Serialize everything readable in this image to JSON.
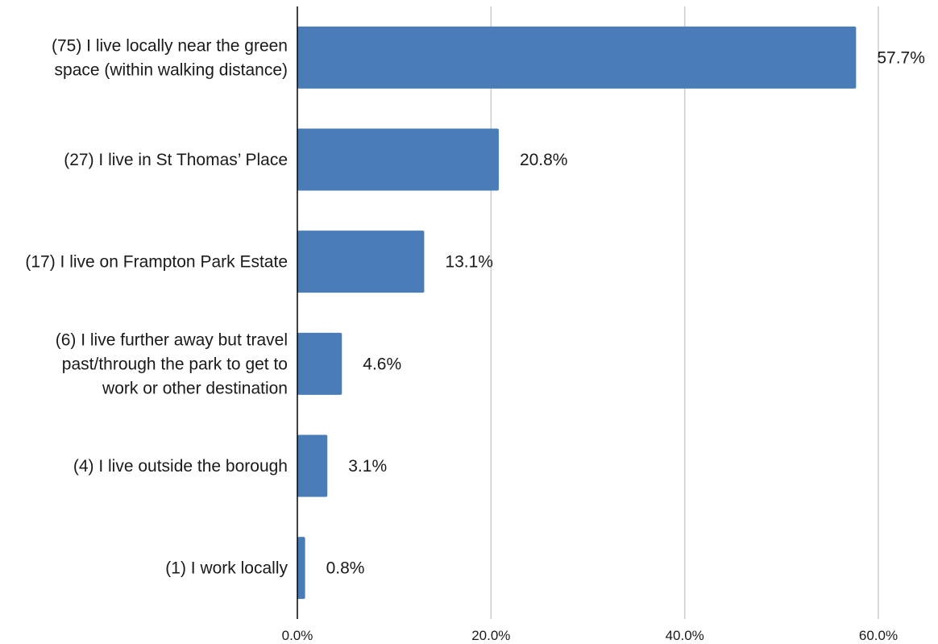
{
  "chart_data": {
    "type": "bar",
    "orientation": "horizontal",
    "categories": [
      "(75) I live locally near the green space (within walking distance)",
      "(27) I live in St Thomas’ Place",
      "(17) I live on Frampton Park Estate",
      "(6) I live further away but travel past/through the park to get to work or other destination",
      "(4) I live outside the borough",
      "(1) I work locally"
    ],
    "category_lines": [
      [
        "(75) I live locally near the green",
        "space (within walking distance)"
      ],
      [
        "(27) I live in St Thomas’ Place"
      ],
      [
        "(17) I live on Frampton Park Estate"
      ],
      [
        "(6) I live further away but travel",
        "past/through the park to get to",
        "work or other destination"
      ],
      [
        "(4) I live outside the borough"
      ],
      [
        "(1) I work locally"
      ]
    ],
    "values": [
      57.7,
      20.8,
      13.1,
      4.6,
      3.1,
      0.8
    ],
    "data_labels": [
      "57.7%",
      "20.8%",
      "13.1%",
      "4.6%",
      "3.1%",
      "0.8%"
    ],
    "x_ticks": [
      0,
      20,
      40,
      60
    ],
    "x_tick_labels": [
      "0.0%",
      "20.0%",
      "40.0%",
      "60.0%"
    ],
    "xlim": [
      0,
      60
    ],
    "grid": true,
    "legend": "none",
    "title": "",
    "xlabel": "",
    "ylabel": "",
    "colors": {
      "bar": "#4a7db8",
      "grid": "#cccccc",
      "axis": "#000000",
      "text": "#1a1a1a"
    }
  }
}
